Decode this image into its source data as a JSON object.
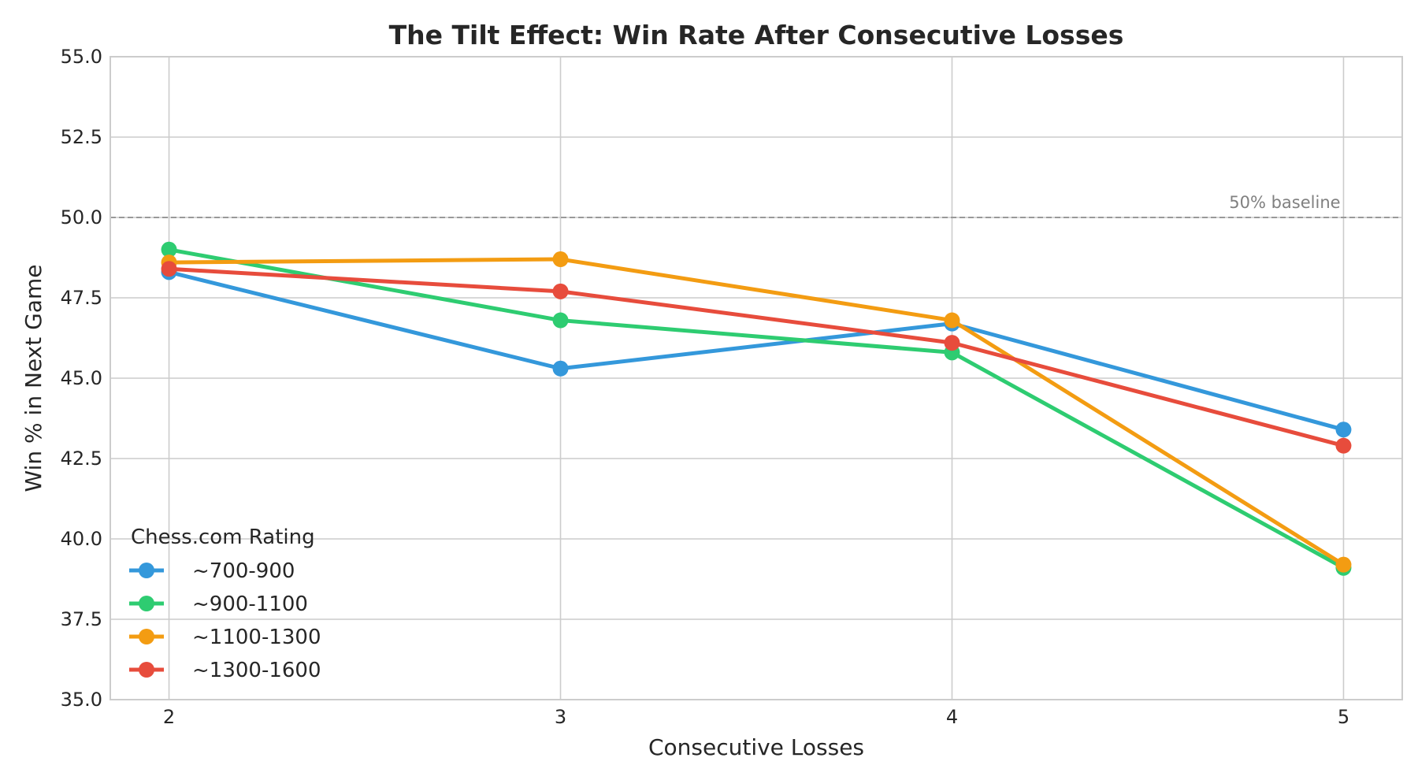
{
  "chart_data": {
    "type": "line",
    "title": "The Tilt Effect: Win Rate After Consecutive Losses",
    "xlabel": "Consecutive Losses",
    "ylabel": "Win % in Next Game",
    "x": [
      2,
      3,
      4,
      5
    ],
    "x_tick_labels": [
      "2",
      "3",
      "4",
      "5"
    ],
    "xlim": [
      1.85,
      5.15
    ],
    "ylim": [
      35.0,
      55.0
    ],
    "y_ticks": [
      35.0,
      37.5,
      40.0,
      42.5,
      45.0,
      47.5,
      50.0,
      52.5,
      55.0
    ],
    "y_tick_labels": [
      "35.0",
      "37.5",
      "40.0",
      "42.5",
      "45.0",
      "47.5",
      "50.0",
      "52.5",
      "55.0"
    ],
    "grid": true,
    "legend": {
      "title": "Chess.com Rating",
      "placement": "lower-left"
    },
    "series": [
      {
        "name": "~700-900",
        "color": "#3498db",
        "values": [
          48.3,
          45.3,
          46.7,
          43.4
        ]
      },
      {
        "name": "~900-1100",
        "color": "#2ecc71",
        "values": [
          49.0,
          46.8,
          45.8,
          39.1
        ]
      },
      {
        "name": "~1100-1300",
        "color": "#f39c12",
        "values": [
          48.6,
          48.7,
          46.8,
          39.2
        ]
      },
      {
        "name": "~1300-1600",
        "color": "#e74c3c",
        "values": [
          48.4,
          47.7,
          46.1,
          42.9
        ]
      }
    ],
    "reference_line": {
      "y": 50.0,
      "label": "50% baseline",
      "color": "#999999",
      "style": "dashed"
    }
  }
}
